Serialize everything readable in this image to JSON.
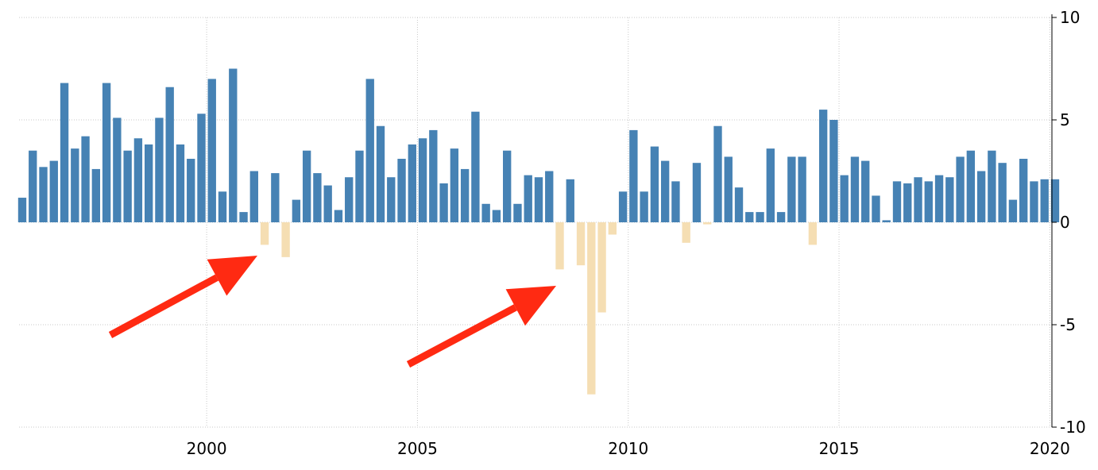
{
  "chart_data": {
    "type": "bar",
    "title": "",
    "xlabel": "",
    "ylabel": "",
    "x_start": 1995.625,
    "x_step": 0.25,
    "xlim": [
      1995.55,
      2020.05
    ],
    "ylim": [
      -10,
      10
    ],
    "yticks": [
      10,
      5,
      0,
      -5,
      -10
    ],
    "xticks": [
      2000,
      2005,
      2010,
      2015,
      2020
    ],
    "grid": true,
    "grid_style": "dotted",
    "y_axis_position": "right",
    "values": [
      1.2,
      3.5,
      2.7,
      3.0,
      6.8,
      3.6,
      4.2,
      2.6,
      6.8,
      5.1,
      3.5,
      4.1,
      3.8,
      5.1,
      6.6,
      3.8,
      3.1,
      5.3,
      7.0,
      1.5,
      7.5,
      0.5,
      2.5,
      -1.1,
      2.4,
      -1.7,
      1.1,
      3.5,
      2.4,
      1.8,
      0.6,
      2.2,
      3.5,
      7.0,
      4.7,
      2.2,
      3.1,
      3.8,
      4.1,
      4.5,
      1.9,
      3.6,
      2.6,
      5.4,
      0.9,
      0.6,
      3.5,
      0.9,
      2.3,
      2.2,
      2.5,
      -2.3,
      2.1,
      -2.1,
      -8.4,
      -4.4,
      -0.6,
      1.5,
      4.5,
      1.5,
      3.7,
      3.0,
      2.0,
      -1.0,
      2.9,
      -0.1,
      4.7,
      3.2,
      1.7,
      0.5,
      0.5,
      3.6,
      0.5,
      3.2,
      3.2,
      -1.1,
      5.5,
      5.0,
      2.3,
      3.2,
      3.0,
      1.3,
      0.1,
      2.0,
      1.9,
      2.2,
      2.0,
      2.3,
      2.2,
      3.2,
      3.5,
      2.5,
      3.5,
      2.9,
      1.1,
      3.1,
      2.0,
      2.1,
      2.1
    ],
    "colors": {
      "positive": "#4682b4",
      "negative": "#f5deb3",
      "grid": "#c8c8c8",
      "axis": "#000000"
    },
    "annotations": [
      {
        "type": "arrow",
        "color": "#ff2a12",
        "points_to": "2001 negative quarters"
      },
      {
        "type": "arrow",
        "color": "#ff2a12",
        "points_to": "2008-2009 negative quarters"
      }
    ]
  }
}
